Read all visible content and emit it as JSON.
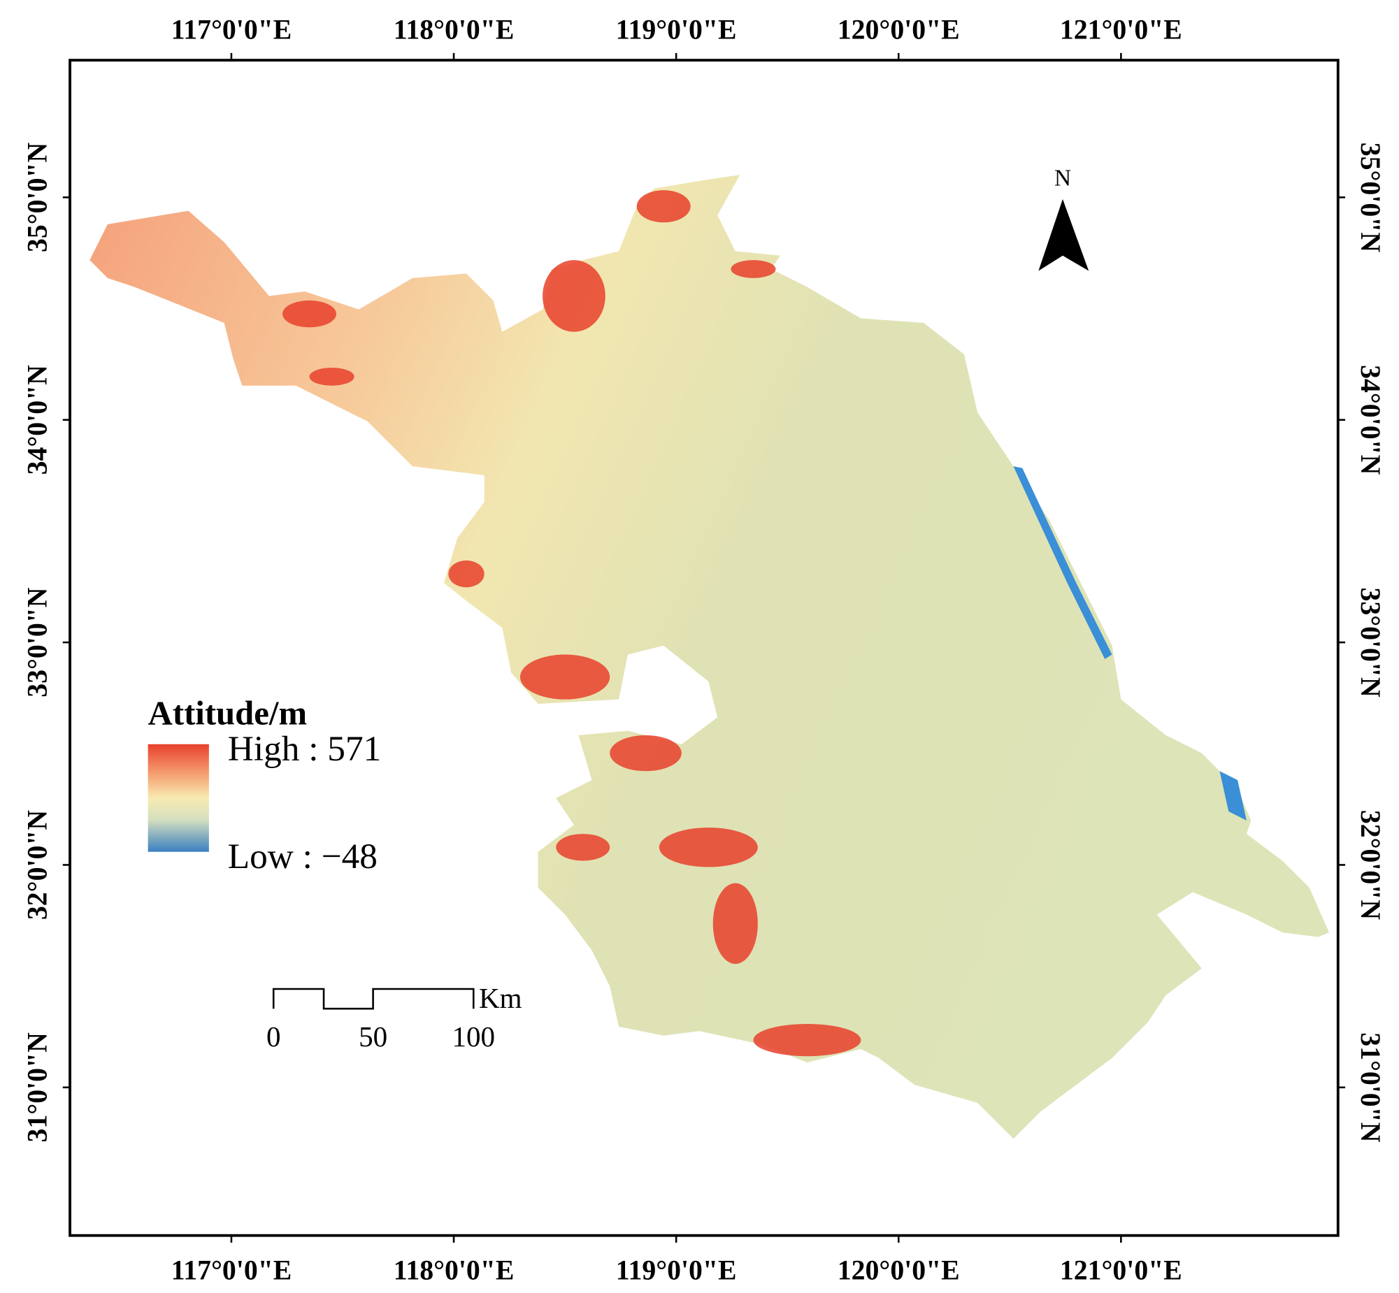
{
  "map": {
    "lon_ticks": [
      "117°0'0\"E",
      "118°0'0\"E",
      "119°0'0\"E",
      "120°0'0\"E",
      "121°0'0\"E"
    ],
    "lat_ticks": [
      "35°0'0\"N",
      "34°0'0\"N",
      "33°0'0\"N",
      "32°0'0\"N",
      "31°0'0\"N"
    ],
    "legend": {
      "title": "Attitude/m",
      "high": "High : 571",
      "low": "Low : −48"
    },
    "scale_bar": {
      "labels": [
        "0",
        "50",
        "100"
      ],
      "unit": "Km"
    },
    "north": "N"
  }
}
